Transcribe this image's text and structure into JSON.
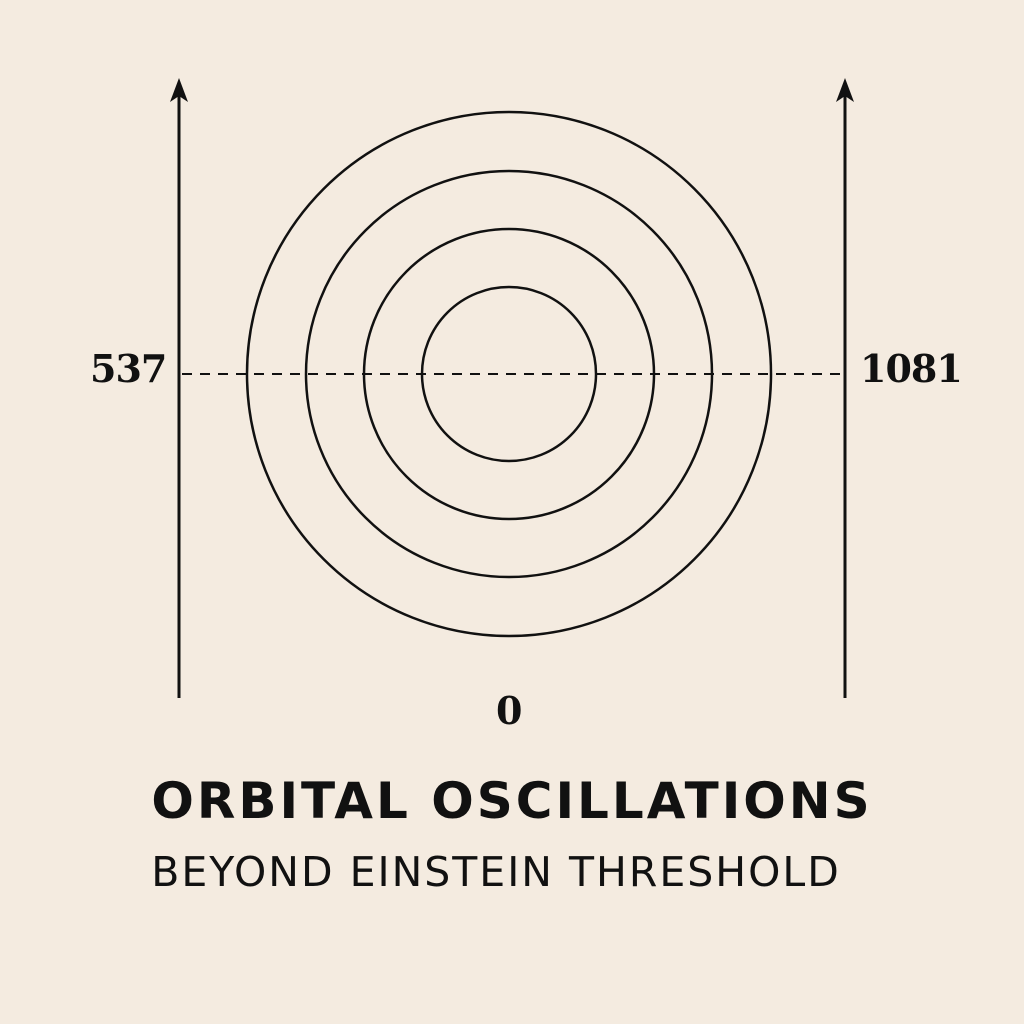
{
  "labels": {
    "left_value": "537",
    "right_value": "1081",
    "bottom_value": "0"
  },
  "title": {
    "main": "ORBITAL OSCILLATIONS",
    "sub": "BEYOND EINSTEIN THRESHOLD"
  },
  "diagram": {
    "ring_count": 4,
    "line_color": "#111111",
    "background_color": "#f4ebe0"
  }
}
